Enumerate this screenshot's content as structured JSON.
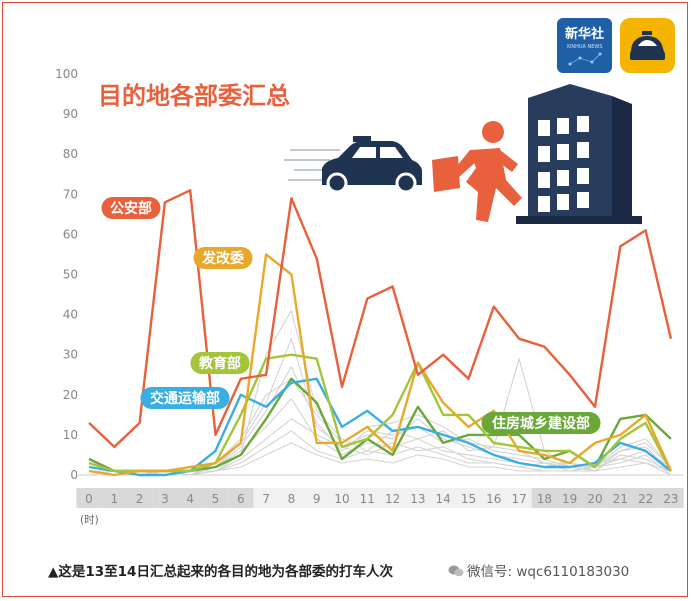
{
  "chart_data": {
    "type": "line",
    "title": "目的地各部委汇总",
    "x": [
      "0",
      "1",
      "2",
      "3",
      "4",
      "5",
      "6",
      "7",
      "8",
      "9",
      "10",
      "11",
      "12",
      "13",
      "14",
      "15",
      "16",
      "17",
      "18",
      "19",
      "20",
      "21",
      "22",
      "23"
    ],
    "xunit": "(时)",
    "ylim": [
      0,
      100
    ],
    "yticks": [
      0,
      10,
      20,
      30,
      40,
      50,
      60,
      70,
      80,
      90,
      100
    ],
    "grid": false,
    "series": [
      {
        "name": "公安部",
        "color": "#e8603c",
        "values": [
          13,
          7,
          13,
          68,
          71,
          10,
          24,
          25,
          69,
          54,
          22,
          44,
          47,
          25,
          30,
          24,
          42,
          34,
          32,
          25,
          17,
          57,
          61,
          34
        ]
      },
      {
        "name": "发改委",
        "color": "#e8a92a",
        "values": [
          1,
          0,
          1,
          1,
          2,
          3,
          8,
          55,
          50,
          8,
          8,
          12,
          6,
          28,
          18,
          12,
          16,
          6,
          5,
          3,
          8,
          10,
          15,
          1
        ]
      },
      {
        "name": "教育部",
        "color": "#a4c43a",
        "values": [
          3,
          1,
          1,
          1,
          1,
          3,
          15,
          29,
          30,
          29,
          7,
          9,
          15,
          28,
          15,
          15,
          8,
          7,
          6,
          6,
          2,
          9,
          13,
          1
        ]
      },
      {
        "name": "交通运输部",
        "color": "#3aaee0",
        "values": [
          2,
          1,
          0,
          0,
          1,
          6,
          20,
          17,
          23,
          24,
          12,
          16,
          11,
          12,
          10,
          8,
          5,
          3,
          2,
          2,
          3,
          8,
          6,
          1
        ]
      },
      {
        "name": "住房城乡建设部",
        "color": "#6aa83a",
        "values": [
          4,
          1,
          1,
          1,
          1,
          2,
          5,
          14,
          24,
          18,
          4,
          9,
          5,
          17,
          8,
          10,
          10,
          10,
          4,
          6,
          2,
          14,
          15,
          9
        ]
      },
      {
        "name": "",
        "color": "#d4d4d4",
        "values": [
          1,
          0,
          0,
          0,
          1,
          2,
          8,
          18,
          34,
          12,
          7,
          10,
          9,
          14,
          9,
          7,
          5,
          4,
          3,
          2,
          2,
          6,
          7,
          1
        ]
      },
      {
        "name": "",
        "color": "#d4d4d4",
        "values": [
          0,
          0,
          0,
          1,
          0,
          1,
          5,
          30,
          41,
          16,
          9,
          6,
          11,
          9,
          11,
          6,
          7,
          29,
          6,
          2,
          3,
          4,
          6,
          2
        ]
      },
      {
        "name": "",
        "color": "#d4d4d4",
        "values": [
          1,
          1,
          0,
          0,
          0,
          2,
          6,
          12,
          19,
          9,
          5,
          8,
          7,
          9,
          6,
          5,
          4,
          3,
          2,
          3,
          1,
          5,
          4,
          1
        ]
      },
      {
        "name": "",
        "color": "#d4d4d4",
        "values": [
          0,
          0,
          1,
          0,
          1,
          1,
          4,
          9,
          14,
          10,
          7,
          5,
          8,
          6,
          7,
          4,
          3,
          2,
          3,
          1,
          2,
          3,
          5,
          0
        ]
      },
      {
        "name": "",
        "color": "#d4d4d4",
        "values": [
          1,
          0,
          0,
          1,
          0,
          2,
          7,
          16,
          27,
          13,
          6,
          11,
          10,
          12,
          8,
          9,
          6,
          5,
          4,
          2,
          1,
          6,
          8,
          2
        ]
      },
      {
        "name": "",
        "color": "#d4d4d4",
        "values": [
          0,
          1,
          0,
          0,
          1,
          1,
          3,
          7,
          11,
          6,
          4,
          6,
          5,
          7,
          5,
          3,
          3,
          2,
          1,
          1,
          2,
          4,
          3,
          1
        ]
      },
      {
        "name": "",
        "color": "#d4d4d4",
        "values": [
          2,
          1,
          0,
          0,
          0,
          3,
          9,
          20,
          24,
          15,
          8,
          12,
          13,
          15,
          12,
          8,
          7,
          6,
          3,
          3,
          2,
          7,
          9,
          2
        ]
      },
      {
        "name": "",
        "color": "#d4d4d4",
        "values": [
          0,
          0,
          0,
          0,
          0,
          1,
          2,
          5,
          8,
          5,
          3,
          4,
          3,
          5,
          4,
          2,
          2,
          1,
          1,
          1,
          1,
          2,
          3,
          0
        ]
      }
    ],
    "callouts": [
      {
        "label": "公安部",
        "series": 0,
        "color": "#e8603c"
      },
      {
        "label": "发改委",
        "series": 1,
        "color": "#e8a92a"
      },
      {
        "label": "教育部",
        "series": 2,
        "color": "#a4c43a"
      },
      {
        "label": "交通运输部",
        "series": 3,
        "color": "#3aaee0"
      },
      {
        "label": "住房城乡建设部",
        "series": 4,
        "color": "#6aa83a"
      }
    ],
    "shaded_hours": {
      "night_early": [
        0,
        1,
        2,
        3,
        4,
        5,
        6
      ],
      "night_late": [
        18,
        19,
        20,
        21,
        22,
        23
      ]
    }
  },
  "logos": {
    "xinhua": {
      "text": "新华社",
      "subtext": "XINHUA NEWS",
      "color": "#1f5fa6"
    },
    "taxi_app": {
      "color": "#f4b400"
    }
  },
  "caption": "▲这是13至14日汇总起来的各目的地为各部委的打车人次",
  "watermark": "微信号: wqc6110183030"
}
